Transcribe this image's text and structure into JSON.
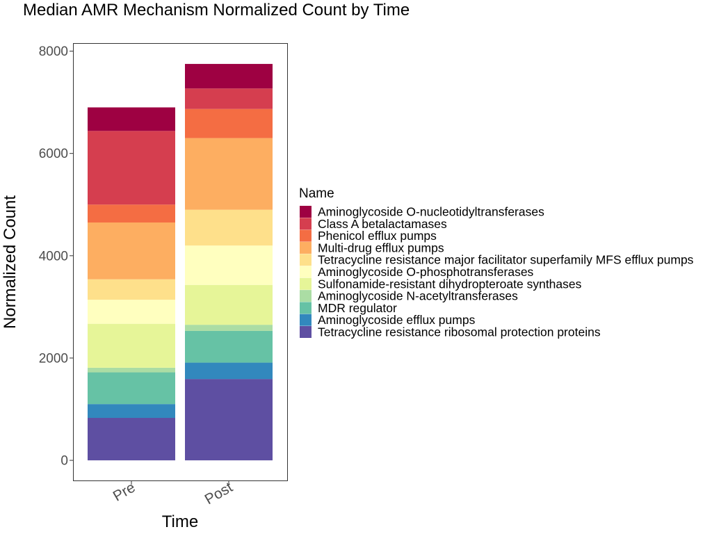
{
  "chart_data": {
    "type": "bar",
    "stacked": true,
    "title": "Median AMR Mechanism Normalized Count by Time",
    "xlabel": "Time",
    "ylabel": "Normalized Count",
    "categories": [
      "Pre",
      "Post"
    ],
    "ylim": [
      -400,
      8150
    ],
    "yticks": [
      0,
      2000,
      4000,
      6000,
      8000
    ],
    "grid": false,
    "legend_title": "Name",
    "legend_position": "right",
    "series": [
      {
        "name": "Tetracycline resistance ribosomal protection proteins",
        "color": "#5E4FA2",
        "values": [
          830,
          1590
        ]
      },
      {
        "name": "Aminoglycoside efflux pumps",
        "color": "#3288BD",
        "values": [
          270,
          320
        ]
      },
      {
        "name": "MDR regulator",
        "color": "#66C2A5",
        "values": [
          620,
          620
        ]
      },
      {
        "name": "Aminoglycoside N-acetyltransferases",
        "color": "#ABDDA4",
        "values": [
          90,
          120
        ]
      },
      {
        "name": "Sulfonamide-resistant dihydropteroate synthases",
        "color": "#E6F598",
        "values": [
          860,
          780
        ]
      },
      {
        "name": "Aminoglycoside O-phosphotransferases",
        "color": "#FFFFBF",
        "values": [
          470,
          770
        ]
      },
      {
        "name": "Tetracycline resistance major facilitator superfamily MFS efflux pumps",
        "color": "#FEE08B",
        "values": [
          400,
          700
        ]
      },
      {
        "name": "Multi-drug efflux pumps",
        "color": "#FDAE61",
        "values": [
          1110,
          1400
        ]
      },
      {
        "name": "Phenicol efflux pumps",
        "color": "#F46D43",
        "values": [
          350,
          570
        ]
      },
      {
        "name": "Class A betalactamases",
        "color": "#D53E4F",
        "values": [
          1440,
          400
        ]
      },
      {
        "name": "Aminoglycoside O-nucleotidyltransferases",
        "color": "#9E0142",
        "values": [
          460,
          480
        ]
      }
    ]
  }
}
